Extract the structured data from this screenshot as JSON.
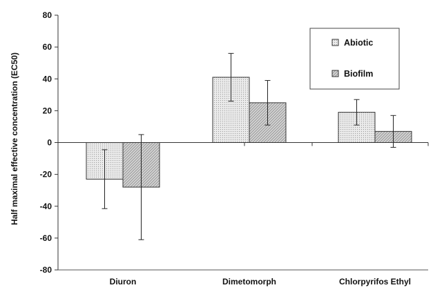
{
  "chart_data": {
    "type": "bar",
    "title": "",
    "xlabel": "",
    "ylabel": "Half maximal effective concentration (EC50)",
    "ylim": [
      -80,
      80
    ],
    "yticks": [
      -80,
      -60,
      -40,
      -20,
      0,
      20,
      40,
      60,
      80
    ],
    "grid": false,
    "legend_position": "top-right",
    "categories": [
      "Diuron",
      "Dimetomorph",
      "Chlorpyrifos Ethyl"
    ],
    "series": [
      {
        "name": "Abiotic",
        "values": [
          -23,
          41,
          19
        ],
        "error": [
          18.5,
          15,
          8
        ],
        "pattern": "dots",
        "color": "#e2e2e2"
      },
      {
        "name": "Biofilm",
        "values": [
          -28,
          25,
          7
        ],
        "error": [
          33,
          14,
          10
        ],
        "pattern": "diagonal-hatch",
        "color": "#c8c8c8"
      }
    ]
  }
}
